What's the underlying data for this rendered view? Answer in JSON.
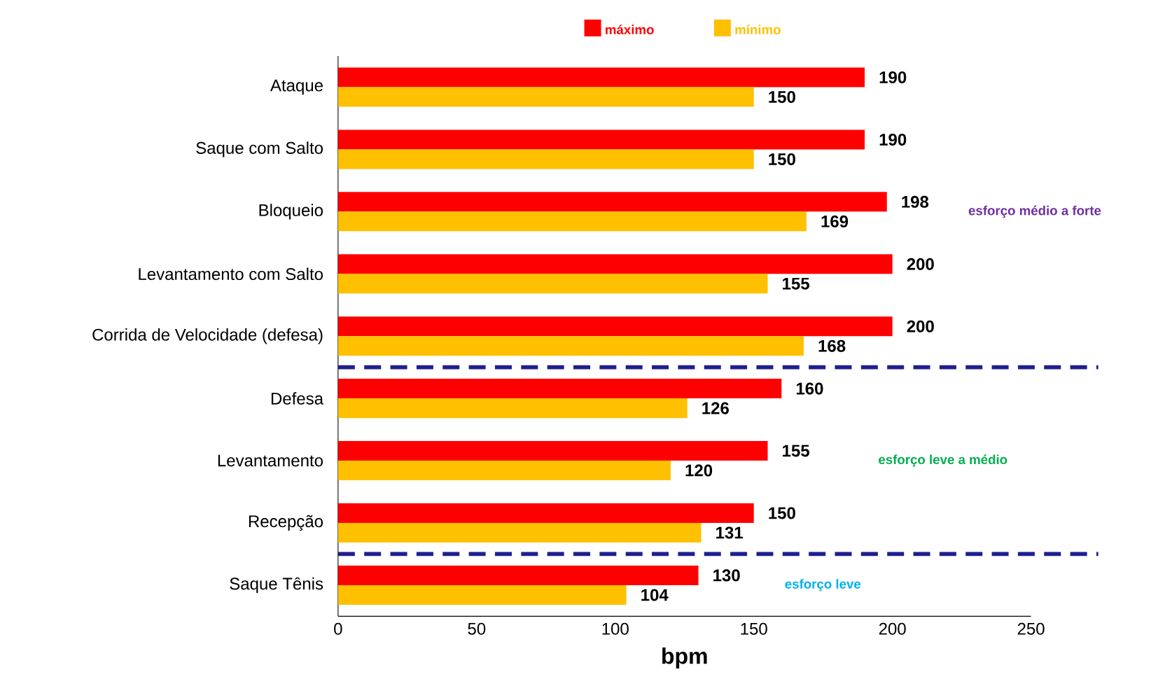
{
  "chart_data": {
    "type": "bar",
    "orientation": "horizontal",
    "xlabel": "bpm",
    "categories": [
      "Ataque",
      "Saque com Salto",
      "Bloqueio",
      "Levantamento com Salto",
      "Corrida de Velocidade (defesa)",
      "Defesa",
      "Levantamento",
      "Recepção",
      "Saque Tênis"
    ],
    "series": [
      {
        "name": "máximo",
        "color": "#ff0000",
        "values": [
          190,
          190,
          198,
          200,
          200,
          160,
          155,
          150,
          130
        ]
      },
      {
        "name": "mínimo",
        "color": "#ffc000",
        "values": [
          150,
          150,
          169,
          155,
          168,
          126,
          120,
          131,
          104
        ]
      }
    ],
    "xlim": [
      0,
      250
    ],
    "xticks": [
      0,
      50,
      100,
      150,
      200,
      250
    ],
    "data_labels": true,
    "legend": "top",
    "annotations": [
      "esforço médio a forte",
      "esforço leve a médio",
      "esforço leve"
    ]
  }
}
